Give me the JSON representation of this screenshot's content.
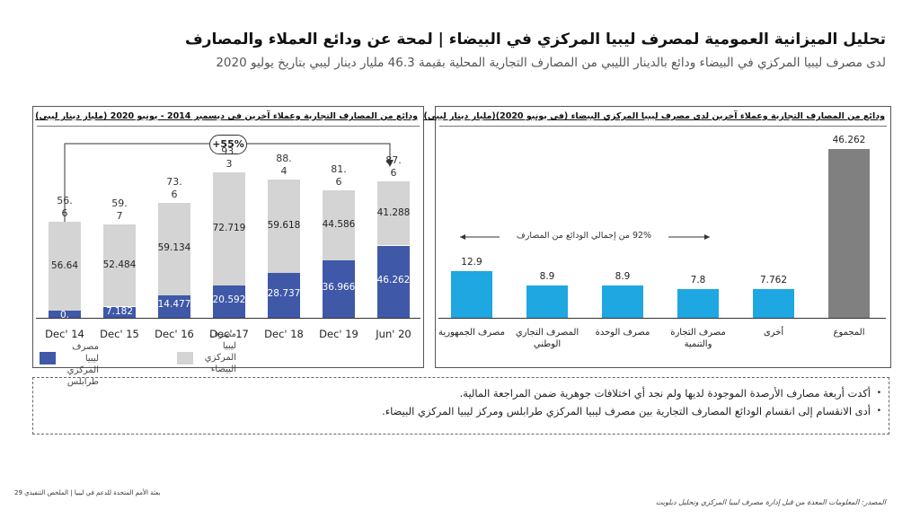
{
  "title": "تحليل الميزانية العمومية لمصرف ليبيا المركزي في البيضاء | لمحة عن ودائع العملاء والمصارف",
  "subtitle": "لدى مصرف ليبيا المركزي في البيضاء ودائع بالدينار الليبي من المصارف التجارية المحلية بقيمة 46.3 مليار دينار ليبي بتاريخ يوليو 2020",
  "colors": {
    "blue": "#3f58a8",
    "gray": "#d4d4d4",
    "cyan": "#1ea7e1",
    "dark_gray": "#808080"
  },
  "left_panel": {
    "title": "ودائع من المصارف التجارية وعملاء آخرين في ديسمبر 2014 - يونيو 2020 (مليار دينار ليبي)",
    "growth_badge": "+55%",
    "legend_blue": "مصرف ليبيا المركزي طرابلس",
    "legend_gray": "مصرف ليبيا المركزي البيضاء"
  },
  "right_panel": {
    "title": "ودائع من المصارف التجارية وعملاء آخرين لدى مصرف ليبيا المركزي البيضاء (في يونيو 2020)(مليار دينار ليبي)",
    "share_text": "92% من إجمالي الودائع من المصارف"
  },
  "chart_data": [
    {
      "type": "bar",
      "stacked": true,
      "title": "ودائع من المصارف التجارية وعملاء آخرين في ديسمبر 2014 - يونيو 2020 (مليار دينار ليبي)",
      "categories": [
        "Dec' 14",
        "Dec' 15",
        "Dec' 16",
        "Dec' 17",
        "Dec' 18",
        "Dec' 19",
        "Jun' 20"
      ],
      "series": [
        {
          "name": "مصرف ليبيا المركزي طرابلس",
          "values": [
            0,
            7.182,
            14.477,
            20.592,
            28.737,
            36.966,
            46.262
          ],
          "labels": [
            "0.\n0",
            "7.182",
            "14.477",
            "20.592",
            "28.737",
            "36.966",
            "46.262"
          ]
        },
        {
          "name": "مصرف ليبيا المركزي البيضاء",
          "values": [
            56.64,
            52.484,
            59.134,
            72.719,
            59.618,
            44.586,
            41.288
          ],
          "labels": [
            "56.64",
            "52.484",
            "59.134",
            "72.719",
            "59.618",
            "44.586",
            "41.288"
          ]
        }
      ],
      "totals": [
        "56.\n6",
        "59.\n7",
        "73.\n6",
        "93.\n3",
        "88.\n4",
        "81.\n6",
        "87.\n6"
      ],
      "annotation": "+55%",
      "ylim": [
        0,
        100
      ]
    },
    {
      "type": "bar",
      "title": "ودائع من المصارف التجارية وعملاء آخرين لدى مصرف ليبيا المركزي البيضاء (في يونيو 2020)(مليار دينار ليبي)",
      "categories": [
        "مصرف الجمهورية",
        "المصرف التجاري الوطني",
        "مصرف الوحدة",
        "مصرف التجارة والتنمية",
        "أخرى",
        "المجموع"
      ],
      "values": [
        12.9,
        8.9,
        8.9,
        7.8,
        7.762,
        46.262
      ],
      "labels": [
        "12.9",
        "8.9",
        "8.9",
        "7.8",
        "7.762",
        "46.262"
      ],
      "annotation": "92% من إجمالي الودائع من المصارف",
      "ylim": [
        0,
        50
      ]
    }
  ],
  "notes": [
    "أكدت أربعة مصارف الأرصدة الموجودة لديها ولم نجد أي اختلافات جوهرية ضمن المراجعة المالية.",
    "أدى الانقسام إلى انقسام الودائع المصارف التجارية بين مصرف ليبيا المركزي طرابلس ومركز ليبيا المركزي البيضاء."
  ],
  "footer": {
    "left": "بعثة الأمم المتحدة للدعم في ليبيا | الملخص التنفيذي 29",
    "right": "المصدر: المعلومات المعدة من قبل إدارة مصرف ليبيا المركزي وتحليل ديلويت"
  }
}
